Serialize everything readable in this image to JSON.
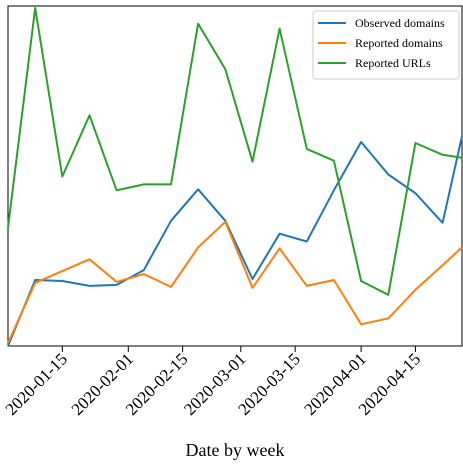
{
  "chart_data": {
    "type": "line",
    "title": "",
    "xlabel": "Date by week",
    "ylabel": "",
    "x": [
      "2020-01-01",
      "2020-01-08",
      "2020-01-15",
      "2020-01-22",
      "2020-01-29",
      "2020-02-05",
      "2020-02-12",
      "2020-02-19",
      "2020-02-26",
      "2020-03-04",
      "2020-03-11",
      "2020-03-18",
      "2020-03-25",
      "2020-04-01",
      "2020-04-08",
      "2020-04-15",
      "2020-04-22",
      "2020-04-27"
    ],
    "xlim": [
      "2020-01-01",
      "2020-04-27"
    ],
    "ylim": [
      0,
      345
    ],
    "xticks": [
      "2020-01-15",
      "2020-02-01",
      "2020-02-15",
      "2020-03-01",
      "2020-03-15",
      "2020-04-01",
      "2020-04-15"
    ],
    "grid": false,
    "legend": "top-right",
    "series": [
      {
        "name": "Observed domains",
        "color": "#1f77b4",
        "values": [
          0,
          67,
          66,
          61,
          62,
          77,
          127,
          159,
          127,
          68,
          114,
          106,
          158,
          207,
          174,
          155,
          125,
          213
        ]
      },
      {
        "name": "Reported domains",
        "color": "#ff7f0e",
        "values": [
          3,
          64,
          76,
          88,
          65,
          73,
          60,
          100,
          126,
          59,
          99,
          61,
          67,
          22,
          28,
          57,
          82,
          100
        ]
      },
      {
        "name": "Reported URLs",
        "color": "#2ca02c",
        "values": [
          120,
          343,
          172,
          234,
          158,
          164,
          164,
          327,
          281,
          187,
          322,
          200,
          188,
          66,
          52,
          206,
          194,
          191
        ]
      }
    ]
  }
}
